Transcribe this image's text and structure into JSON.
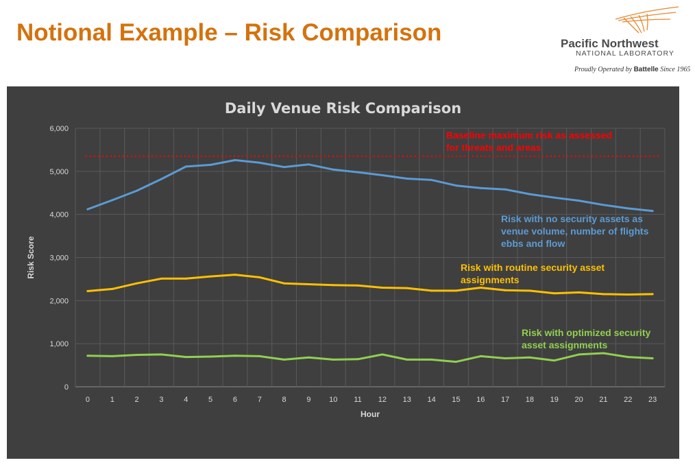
{
  "slide": {
    "title": "Notional Example – Risk Comparison"
  },
  "logo": {
    "name": "Pacific Northwest",
    "sub": "NATIONAL LABORATORY",
    "tagline_pre": "Proudly Operated by ",
    "tagline_brand": "Battelle",
    "tagline_post": " Since 1965"
  },
  "annotations": {
    "baseline": [
      "Baseline maximum risk as assessed",
      "for threats and areas"
    ],
    "no_security": [
      "Risk with no security assets as",
      "venue volume, number of flights",
      "ebbs and flow"
    ],
    "routine": [
      "Risk with routine security asset",
      "assignments"
    ],
    "optimized": [
      "Risk with optimized security",
      "asset assignments"
    ]
  },
  "chart_data": {
    "type": "line",
    "title": "Daily Venue Risk Comparison",
    "xlabel": "Hour",
    "ylabel": "Risk Score",
    "x": [
      0,
      1,
      2,
      3,
      4,
      5,
      6,
      7,
      8,
      9,
      10,
      11,
      12,
      13,
      14,
      15,
      16,
      17,
      18,
      19,
      20,
      21,
      22,
      23
    ],
    "ylim": [
      0,
      6000
    ],
    "yticks": [
      0,
      1000,
      2000,
      3000,
      4000,
      5000,
      6000
    ],
    "ytick_labels": [
      "0",
      "1,000",
      "2,000",
      "3,000",
      "4,000",
      "5,000",
      "6,000"
    ],
    "baseline": {
      "name": "Baseline maximum risk",
      "value": 5350,
      "color": "#ff0000"
    },
    "series": [
      {
        "name": "No security assets",
        "color": "#5b9bd5",
        "values": [
          4120,
          4330,
          4550,
          4820,
          5110,
          5150,
          5260,
          5200,
          5100,
          5160,
          5040,
          4980,
          4910,
          4830,
          4800,
          4670,
          4610,
          4580,
          4470,
          4390,
          4320,
          4220,
          4140,
          4080
        ]
      },
      {
        "name": "Routine security asset assignments",
        "color": "#ffc000",
        "values": [
          2220,
          2270,
          2400,
          2510,
          2510,
          2560,
          2600,
          2540,
          2400,
          2380,
          2360,
          2350,
          2300,
          2290,
          2230,
          2230,
          2300,
          2240,
          2230,
          2170,
          2190,
          2150,
          2140,
          2150
        ]
      },
      {
        "name": "Optimized security asset assignments",
        "color": "#92d050",
        "values": [
          720,
          710,
          740,
          750,
          690,
          700,
          720,
          710,
          630,
          680,
          630,
          640,
          750,
          630,
          630,
          580,
          710,
          660,
          680,
          610,
          750,
          780,
          690,
          660
        ]
      }
    ]
  }
}
